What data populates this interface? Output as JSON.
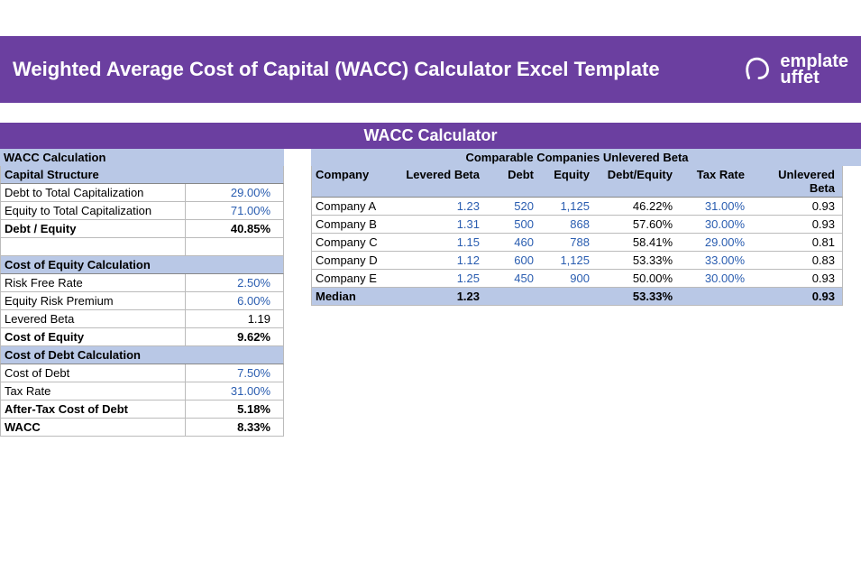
{
  "header": {
    "title": "Weighted Average Cost of Capital (WACC) Calculator Excel Template",
    "logo_top": "emplate",
    "logo_bottom": "uffet"
  },
  "section_title": "WACC Calculator",
  "pair_header": {
    "left": "WACC Calculation",
    "right": "Comparable Companies Unlevered Beta"
  },
  "left": {
    "cap_structure_hdr": "Capital Structure",
    "rows1": [
      {
        "label": "Debt to Total Capitalization",
        "val": "29.00%",
        "blue": true
      },
      {
        "label": "Equity to Total Capitalization",
        "val": "71.00%",
        "blue": true
      },
      {
        "label": "Debt / Equity",
        "val": "40.85%",
        "bold": true
      }
    ],
    "coe_hdr": "Cost of Equity Calculation",
    "rows2": [
      {
        "label": "Risk Free Rate",
        "val": "2.50%",
        "blue": true
      },
      {
        "label": "Equity Risk Premium",
        "val": "6.00%",
        "blue": true
      },
      {
        "label": "Levered Beta",
        "val": "1.19"
      },
      {
        "label": "Cost of Equity",
        "val": "9.62%",
        "bold": true
      }
    ],
    "cod_hdr": "Cost of Debt Calculation",
    "rows3": [
      {
        "label": "Cost of Debt",
        "val": "7.50%",
        "blue": true
      },
      {
        "label": "Tax Rate",
        "val": "31.00%",
        "blue": true
      },
      {
        "label": "After-Tax Cost of Debt",
        "val": "5.18%",
        "bold": true
      },
      {
        "label": "WACC",
        "val": "8.33%",
        "bold": true
      }
    ]
  },
  "right": {
    "headers": {
      "company": "Company",
      "lbeta": "Levered Beta",
      "debt": "Debt",
      "equity": "Equity",
      "de": "Debt/Equity",
      "tax": "Tax Rate",
      "ub": "Unlevered Beta"
    },
    "rows": [
      {
        "company": "Company A",
        "lbeta": "1.23",
        "debt": "520",
        "equity": "1,125",
        "de": "46.22%",
        "tax": "31.00%",
        "ub": "0.93"
      },
      {
        "company": "Company B",
        "lbeta": "1.31",
        "debt": "500",
        "equity": "868",
        "de": "57.60%",
        "tax": "30.00%",
        "ub": "0.93"
      },
      {
        "company": "Company C",
        "lbeta": "1.15",
        "debt": "460",
        "equity": "788",
        "de": "58.41%",
        "tax": "29.00%",
        "ub": "0.81"
      },
      {
        "company": "Company D",
        "lbeta": "1.12",
        "debt": "600",
        "equity": "1,125",
        "de": "53.33%",
        "tax": "33.00%",
        "ub": "0.83"
      },
      {
        "company": "Company E",
        "lbeta": "1.25",
        "debt": "450",
        "equity": "900",
        "de": "50.00%",
        "tax": "30.00%",
        "ub": "0.93"
      }
    ],
    "median": {
      "label": "Median",
      "lbeta": "1.23",
      "de": "53.33%",
      "ub": "0.93"
    }
  },
  "colors": {
    "brand": "#6b3fa0",
    "row_hl": "#b9c8e6",
    "blue_text": "#2a5db0"
  }
}
